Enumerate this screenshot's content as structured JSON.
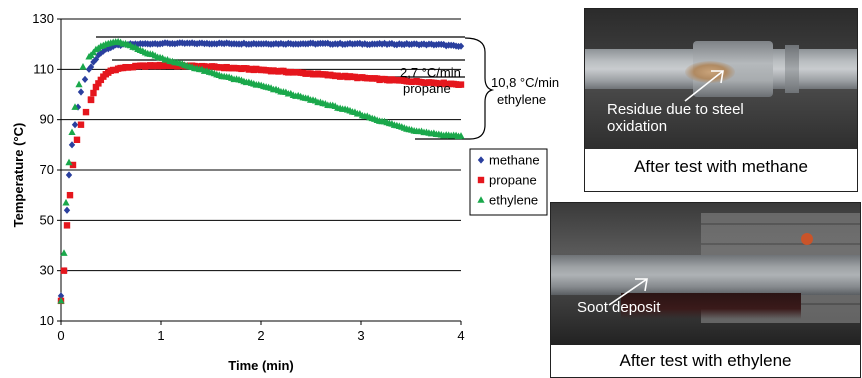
{
  "chart_data": {
    "type": "scatter",
    "xlabel": "Time (min)",
    "ylabel": "Temperature (°C)",
    "xlim": [
      0,
      4
    ],
    "ylim": [
      10,
      130
    ],
    "x_ticks": [
      "0",
      "1",
      "2",
      "3",
      "4"
    ],
    "y_ticks": [
      "10",
      "30",
      "50",
      "70",
      "90",
      "110",
      "130"
    ],
    "grid": "horizontal",
    "legend_position": "right",
    "series": [
      {
        "name": "methane",
        "color": "#2a3f9e",
        "marker": "diamond",
        "points": [
          [
            0,
            20
          ],
          [
            0.04,
            30
          ],
          [
            0.06,
            54
          ],
          [
            0.08,
            68
          ],
          [
            0.11,
            80
          ],
          [
            0.14,
            88
          ],
          [
            0.17,
            95
          ],
          [
            0.2,
            101
          ],
          [
            0.24,
            106
          ],
          [
            0.28,
            110
          ],
          [
            0.33,
            113
          ],
          [
            0.38,
            116
          ],
          [
            0.45,
            118
          ],
          [
            0.55,
            119.5
          ],
          [
            0.7,
            120
          ],
          [
            1.0,
            120.3
          ],
          [
            1.5,
            120.3
          ],
          [
            2.0,
            120.2
          ],
          [
            2.5,
            120.2
          ],
          [
            3.0,
            120.1
          ],
          [
            3.5,
            120
          ],
          [
            3.8,
            119.8
          ],
          [
            4.0,
            119
          ]
        ]
      },
      {
        "name": "propane",
        "color": "#e5161d",
        "marker": "square",
        "points": [
          [
            0,
            18
          ],
          [
            0.03,
            30
          ],
          [
            0.06,
            48
          ],
          [
            0.09,
            60
          ],
          [
            0.12,
            72
          ],
          [
            0.16,
            82
          ],
          [
            0.2,
            88
          ],
          [
            0.25,
            93
          ],
          [
            0.3,
            98
          ],
          [
            0.35,
            103
          ],
          [
            0.4,
            106
          ],
          [
            0.45,
            108
          ],
          [
            0.5,
            109.5
          ],
          [
            0.6,
            110.5
          ],
          [
            0.8,
            111.3
          ],
          [
            1.0,
            111.5
          ],
          [
            1.3,
            111.3
          ],
          [
            1.6,
            110.8
          ],
          [
            2.0,
            109.8
          ],
          [
            2.4,
            108.6
          ],
          [
            2.8,
            107.3
          ],
          [
            3.2,
            106
          ],
          [
            3.6,
            105
          ],
          [
            4.0,
            104
          ]
        ]
      },
      {
        "name": "ethylene",
        "color": "#1aa84b",
        "marker": "triangle",
        "points": [
          [
            0,
            18
          ],
          [
            0.03,
            37
          ],
          [
            0.05,
            57
          ],
          [
            0.08,
            73
          ],
          [
            0.11,
            85
          ],
          [
            0.14,
            95
          ],
          [
            0.18,
            104
          ],
          [
            0.22,
            111
          ],
          [
            0.28,
            115
          ],
          [
            0.35,
            118
          ],
          [
            0.45,
            120
          ],
          [
            0.55,
            121
          ],
          [
            0.65,
            120
          ],
          [
            0.8,
            117.5
          ],
          [
            1.0,
            114.5
          ],
          [
            1.3,
            111
          ],
          [
            1.6,
            107.5
          ],
          [
            2.0,
            103.5
          ],
          [
            2.4,
            99
          ],
          [
            2.8,
            94.5
          ],
          [
            3.2,
            89.5
          ],
          [
            3.5,
            86
          ],
          [
            3.8,
            84
          ],
          [
            4.0,
            83.5
          ]
        ]
      }
    ],
    "annotations": {
      "propane_rate_value": "2,7 °C/min",
      "propane_rate_label": "propane",
      "ethylene_rate_value": "10,8 °C/min",
      "ethylene_rate_label": "ethylene"
    }
  },
  "photos": [
    {
      "label_line1": "Residue due to steel",
      "label_line2": "oxidation",
      "caption": "After test with methane"
    },
    {
      "label_line1": "Soot deposit",
      "caption": "After test with ethylene"
    }
  ]
}
